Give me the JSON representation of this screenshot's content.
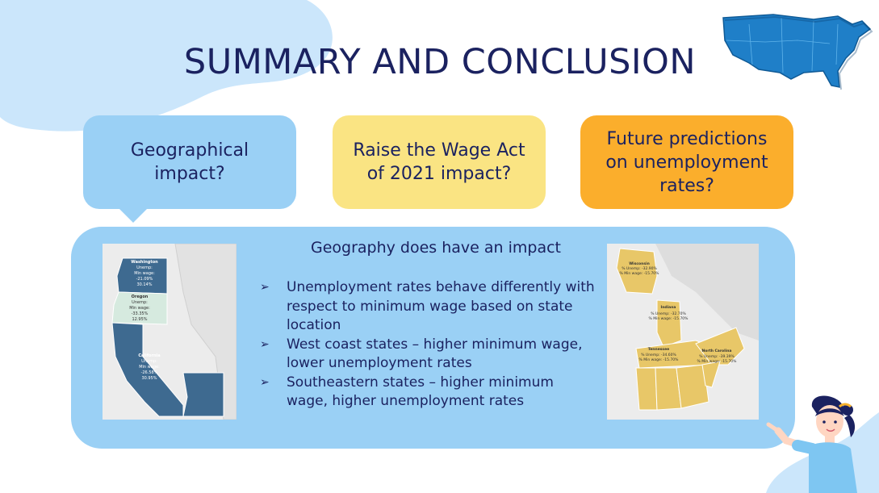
{
  "slide": {
    "title": "SUMMARY AND CONCLUSION"
  },
  "questions": [
    {
      "label": "Geographical impact?",
      "color": "#9ad0f5"
    },
    {
      "label": "Raise the Wage Act of 2021 impact?",
      "color": "#fae483"
    },
    {
      "label": "Future predictions on unemployment rates?",
      "color": "#fbae2c"
    }
  ],
  "conclusion": {
    "heading": "Geography does have an impact",
    "bullets": [
      "Unemployment rates behave differently with respect to minimum wage based on state location",
      "West coast states – higher minimum wage, lower unemployment rates",
      "Southeastern states – higher minimum wage, higher unemployment rates"
    ]
  },
  "map_west": {
    "washington": {
      "name": "Washington",
      "line1": "Unemp:",
      "line2": "Min wage:",
      "line3": "-21.09%",
      "line4": "30.14%"
    },
    "oregon": {
      "name": "Oregon",
      "line1": "Unemp:",
      "line2": "Min wage:",
      "line3": "-33.35%",
      "line4": "12.95%"
    },
    "california": {
      "name": "California",
      "line1": "Unemp:",
      "line2": "Min wage:",
      "line3": "-26.58%",
      "line4": "30.95%"
    }
  },
  "map_southeast": {
    "wisconsin": {
      "name": "Wisconsin",
      "line1": "% Unemp: -32.90%",
      "line2": "% Min wage: -15.70%"
    },
    "indiana": {
      "name": "Indiana",
      "line1": "% Unemp: -32.70%",
      "line2": "% Min wage: -15.70%"
    },
    "tennessee": {
      "name": "Tennessee",
      "line1": "% Unemp: -34.60%",
      "line2": "% Min wage: -15.70%"
    },
    "north_carolina": {
      "name": "North Carolina",
      "line1": "% Unemp: -39.39%",
      "line2": "% Min wage: -15.70%"
    }
  },
  "icons": {
    "usa_map": "usa-map-icon",
    "presenter": "presenter-illustration-icon"
  },
  "colors": {
    "title": "#1b2260",
    "west_dark": "#3e6a90",
    "west_light": "#d6eadf",
    "southeast": "#e8c768"
  }
}
